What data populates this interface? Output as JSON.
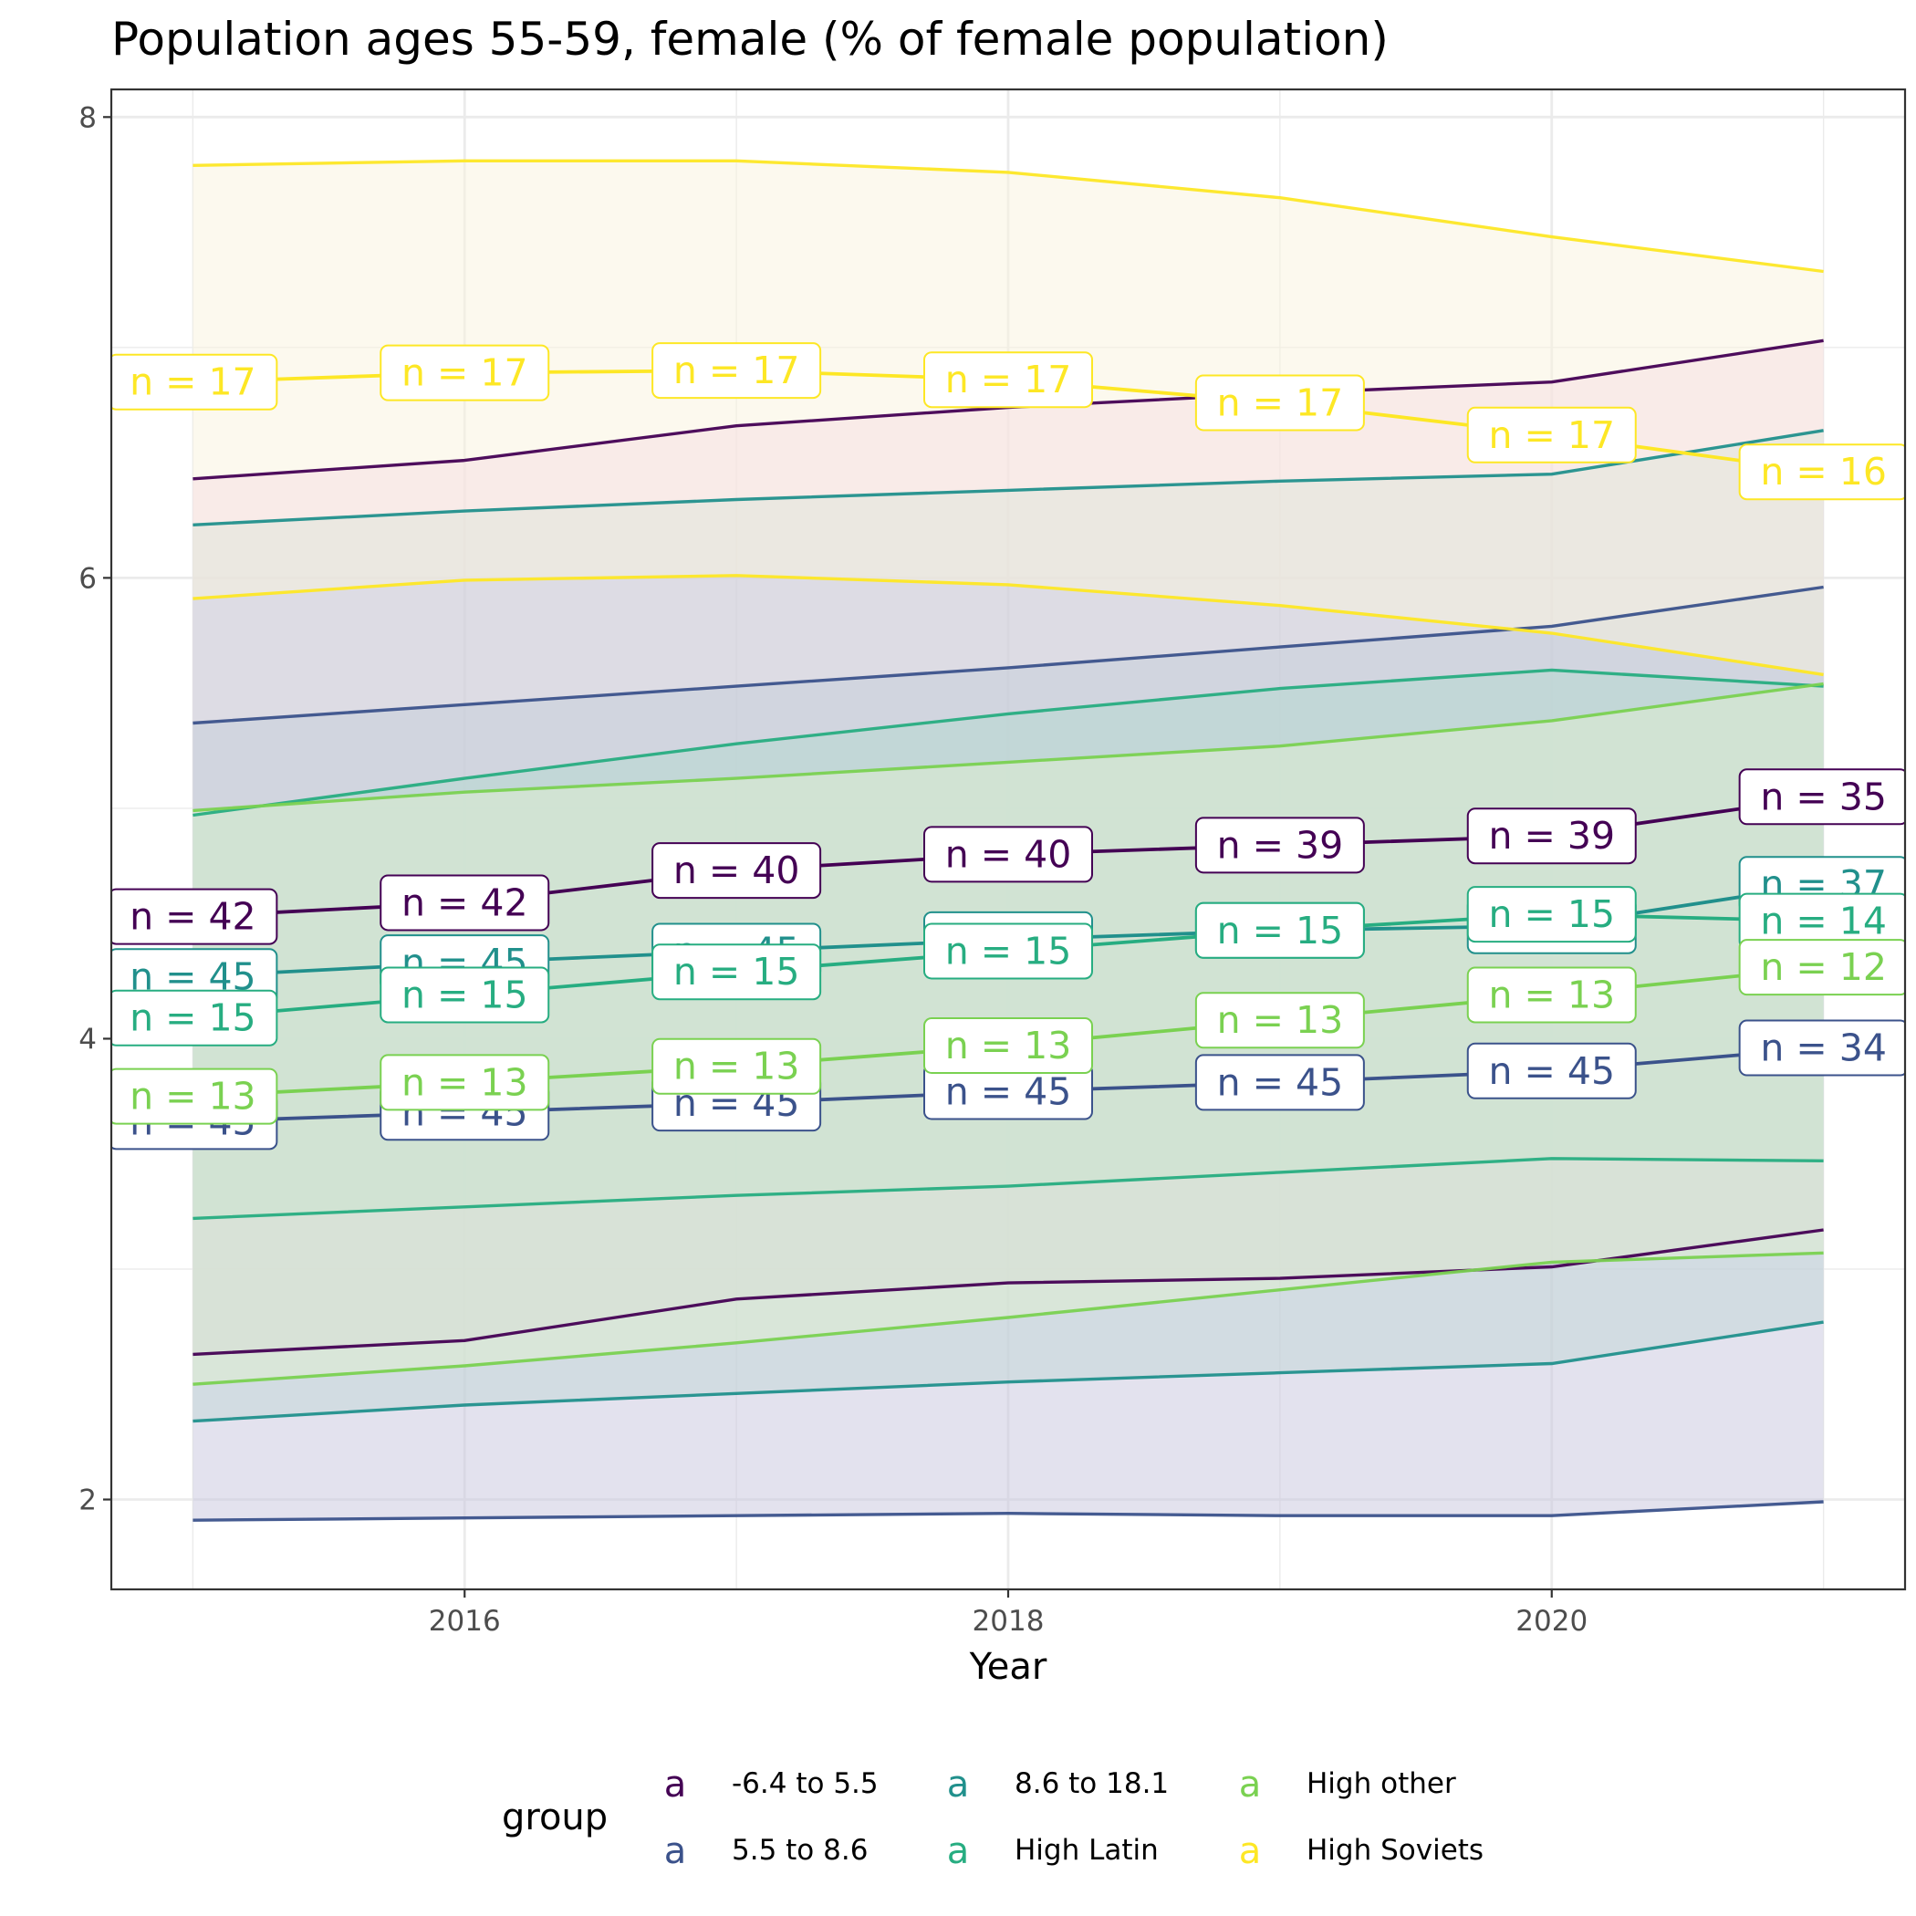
{
  "chart_data": {
    "type": "line",
    "title": "Population ages 55-59, female (% of female population)",
    "xlabel": "Year",
    "ylabel": "",
    "xlim": [
      2014.7,
      2021.3
    ],
    "ylim": [
      1.61,
      8.12
    ],
    "x_ticks": [
      2016,
      2018,
      2020
    ],
    "y_ticks": [
      2,
      4,
      6,
      8
    ],
    "grid": true,
    "legend_position": "bottom",
    "legend_title": "group",
    "legend_key_glyph": "a",
    "x": [
      2015,
      2016,
      2017,
      2018,
      2019,
      2020,
      2021
    ],
    "series": [
      {
        "name": "-6.4 to 5.5",
        "color": "#440154",
        "ribbon_fill": "#f3c6e6",
        "mean": [
          4.53,
          4.59,
          4.73,
          4.8,
          4.84,
          4.88,
          5.05
        ],
        "upper": [
          6.43,
          6.51,
          6.66,
          6.74,
          6.8,
          6.85,
          7.03
        ],
        "lower": [
          2.63,
          2.69,
          2.87,
          2.94,
          2.96,
          3.01,
          3.17
        ],
        "labels": [
          "n = 42",
          "n = 42",
          "n = 40",
          "n = 40",
          "n = 39",
          "n = 39",
          "n = 35"
        ]
      },
      {
        "name": "5.5 to 8.6",
        "color": "#3b528b",
        "ribbon_fill": "#c8c6de",
        "mean": [
          3.64,
          3.68,
          3.72,
          3.77,
          3.81,
          3.86,
          3.96
        ],
        "upper": [
          5.37,
          5.45,
          5.53,
          5.61,
          5.7,
          5.79,
          5.96
        ],
        "lower": [
          1.91,
          1.92,
          1.93,
          1.94,
          1.93,
          1.93,
          1.99
        ],
        "labels": [
          "n = 45",
          "n = 45",
          "n = 45",
          "n = 45",
          "n = 45",
          "n = 45",
          "n = 34"
        ]
      },
      {
        "name": "8.6 to 18.1",
        "color": "#21908c",
        "ribbon_fill": "#c2d6d6",
        "mean": [
          4.27,
          4.33,
          4.38,
          4.43,
          4.47,
          4.49,
          4.67
        ],
        "upper": [
          6.23,
          6.29,
          6.34,
          6.38,
          6.42,
          6.45,
          6.64
        ],
        "lower": [
          2.34,
          2.41,
          2.46,
          2.51,
          2.55,
          2.59,
          2.77
        ],
        "labels": [
          "n = 45",
          "n = 45",
          "n = 45",
          "n = 45",
          "n = 45",
          "n = 45",
          "n = 37"
        ]
      },
      {
        "name": "High Latin",
        "color": "#27ad81",
        "ribbon_fill": "#b4d9cf",
        "mean": [
          4.09,
          4.19,
          4.29,
          4.38,
          4.47,
          4.54,
          4.51
        ],
        "upper": [
          4.97,
          5.13,
          5.28,
          5.41,
          5.52,
          5.6,
          5.53
        ],
        "lower": [
          3.22,
          3.27,
          3.32,
          3.36,
          3.42,
          3.48,
          3.47
        ],
        "labels": [
          "n = 15",
          "n = 15",
          "n = 15",
          "n = 15",
          "n = 15",
          "n = 15",
          "n = 14"
        ]
      },
      {
        "name": "High other",
        "color": "#7ad151",
        "ribbon_fill": "#dff0d0",
        "mean": [
          3.75,
          3.81,
          3.88,
          3.97,
          4.08,
          4.19,
          4.31
        ],
        "upper": [
          4.99,
          5.07,
          5.13,
          5.2,
          5.27,
          5.38,
          5.54
        ],
        "lower": [
          2.5,
          2.58,
          2.68,
          2.79,
          2.91,
          3.03,
          3.07
        ],
        "labels": [
          "n = 13",
          "n = 13",
          "n = 13",
          "n = 13",
          "n = 13",
          "n = 13",
          "n = 12"
        ]
      },
      {
        "name": "High Soviets",
        "color": "#fde725",
        "ribbon_fill": "#faf4de",
        "mean": [
          6.85,
          6.89,
          6.9,
          6.86,
          6.76,
          6.62,
          6.46
        ],
        "upper": [
          7.79,
          7.81,
          7.81,
          7.76,
          7.65,
          7.48,
          7.33
        ],
        "lower": [
          5.91,
          5.99,
          6.01,
          5.97,
          5.88,
          5.76,
          5.58
        ],
        "labels": [
          "n = 17",
          "n = 17",
          "n = 17",
          "n = 17",
          "n = 17",
          "n = 17",
          "n = 16"
        ]
      }
    ]
  }
}
